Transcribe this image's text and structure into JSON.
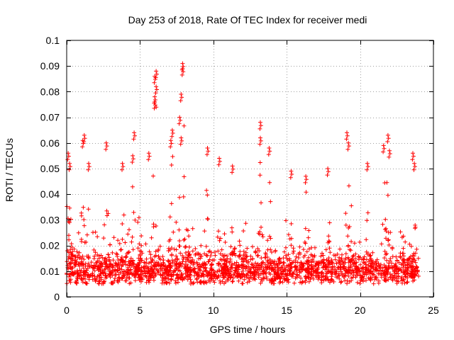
{
  "chart_data": {
    "type": "scatter",
    "title": "Day 253 of 2018, Rate Of TEC Index for receiver medi",
    "xlabel": "GPS time / hours",
    "ylabel": "ROTI / TECUs",
    "xlim": [
      0,
      25
    ],
    "ylim": [
      0,
      0.1
    ],
    "xticks": [
      0,
      5,
      10,
      15,
      20,
      25
    ],
    "yticks": [
      0,
      0.01,
      0.02,
      0.03,
      0.04,
      0.05,
      0.06,
      0.07,
      0.08,
      0.09,
      0.1
    ],
    "xtick_labels": [
      "0",
      "5",
      "10",
      "15",
      "20",
      "25"
    ],
    "ytick_labels": [
      "0",
      "0.01",
      "0.02",
      "0.03",
      "0.04",
      "0.05",
      "0.06",
      "0.07",
      "0.08",
      "0.09",
      "0.1"
    ],
    "grid": true,
    "marker": "+",
    "series": [
      {
        "name": "ROTI",
        "color": "#ff0000",
        "x_range": [
          0,
          24
        ],
        "typical_range": [
          0.005,
          0.025
        ],
        "peaks": [
          {
            "x": 0.1,
            "y": 0.056
          },
          {
            "x": 0.2,
            "y": 0.052
          },
          {
            "x": 1.2,
            "y": 0.063
          },
          {
            "x": 1.1,
            "y": 0.061
          },
          {
            "x": 1.5,
            "y": 0.052
          },
          {
            "x": 2.7,
            "y": 0.06
          },
          {
            "x": 3.8,
            "y": 0.052
          },
          {
            "x": 4.6,
            "y": 0.064
          },
          {
            "x": 4.5,
            "y": 0.055
          },
          {
            "x": 5.6,
            "y": 0.056
          },
          {
            "x": 6.1,
            "y": 0.088
          },
          {
            "x": 6.0,
            "y": 0.086
          },
          {
            "x": 6.1,
            "y": 0.082
          },
          {
            "x": 6.0,
            "y": 0.078
          },
          {
            "x": 6.0,
            "y": 0.076
          },
          {
            "x": 7.2,
            "y": 0.065
          },
          {
            "x": 7.1,
            "y": 0.061
          },
          {
            "x": 7.9,
            "y": 0.091
          },
          {
            "x": 7.9,
            "y": 0.089
          },
          {
            "x": 7.8,
            "y": 0.079
          },
          {
            "x": 7.7,
            "y": 0.07
          },
          {
            "x": 7.8,
            "y": 0.062
          },
          {
            "x": 9.6,
            "y": 0.058
          },
          {
            "x": 10.4,
            "y": 0.054
          },
          {
            "x": 11.3,
            "y": 0.051
          },
          {
            "x": 13.2,
            "y": 0.068
          },
          {
            "x": 13.2,
            "y": 0.062
          },
          {
            "x": 13.8,
            "y": 0.058
          },
          {
            "x": 15.3,
            "y": 0.049
          },
          {
            "x": 16.3,
            "y": 0.047
          },
          {
            "x": 17.8,
            "y": 0.05
          },
          {
            "x": 19.1,
            "y": 0.064
          },
          {
            "x": 19.2,
            "y": 0.06
          },
          {
            "x": 20.5,
            "y": 0.052
          },
          {
            "x": 21.6,
            "y": 0.059
          },
          {
            "x": 21.9,
            "y": 0.063
          },
          {
            "x": 22.0,
            "y": 0.057
          },
          {
            "x": 23.6,
            "y": 0.056
          },
          {
            "x": 23.7,
            "y": 0.052
          }
        ]
      }
    ]
  }
}
